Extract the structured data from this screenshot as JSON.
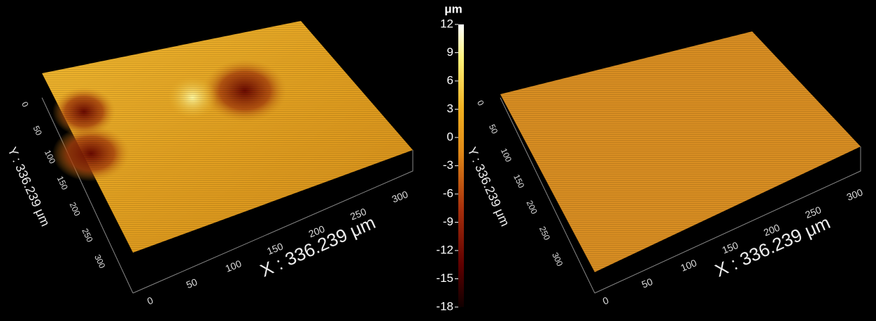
{
  "colorbar": {
    "unit": "μm",
    "ticks": [
      12,
      9,
      6,
      3,
      0,
      -3,
      -6,
      -9,
      -12,
      -15,
      -18
    ]
  },
  "panels": [
    {
      "x_label": "X : 336.239 μm",
      "y_label": "Y : 336.239 μm",
      "x_ticks": [
        0,
        50,
        100,
        150,
        200,
        250,
        300
      ],
      "y_ticks": [
        0,
        50,
        100,
        150,
        200,
        250,
        300
      ]
    },
    {
      "x_label": "X : 336.239 μm",
      "y_label": "Y : 336.239 μm",
      "x_ticks": [
        0,
        50,
        100,
        150,
        200,
        250,
        300
      ],
      "y_ticks": [
        0,
        50,
        100,
        150,
        200,
        250,
        300
      ]
    }
  ]
}
